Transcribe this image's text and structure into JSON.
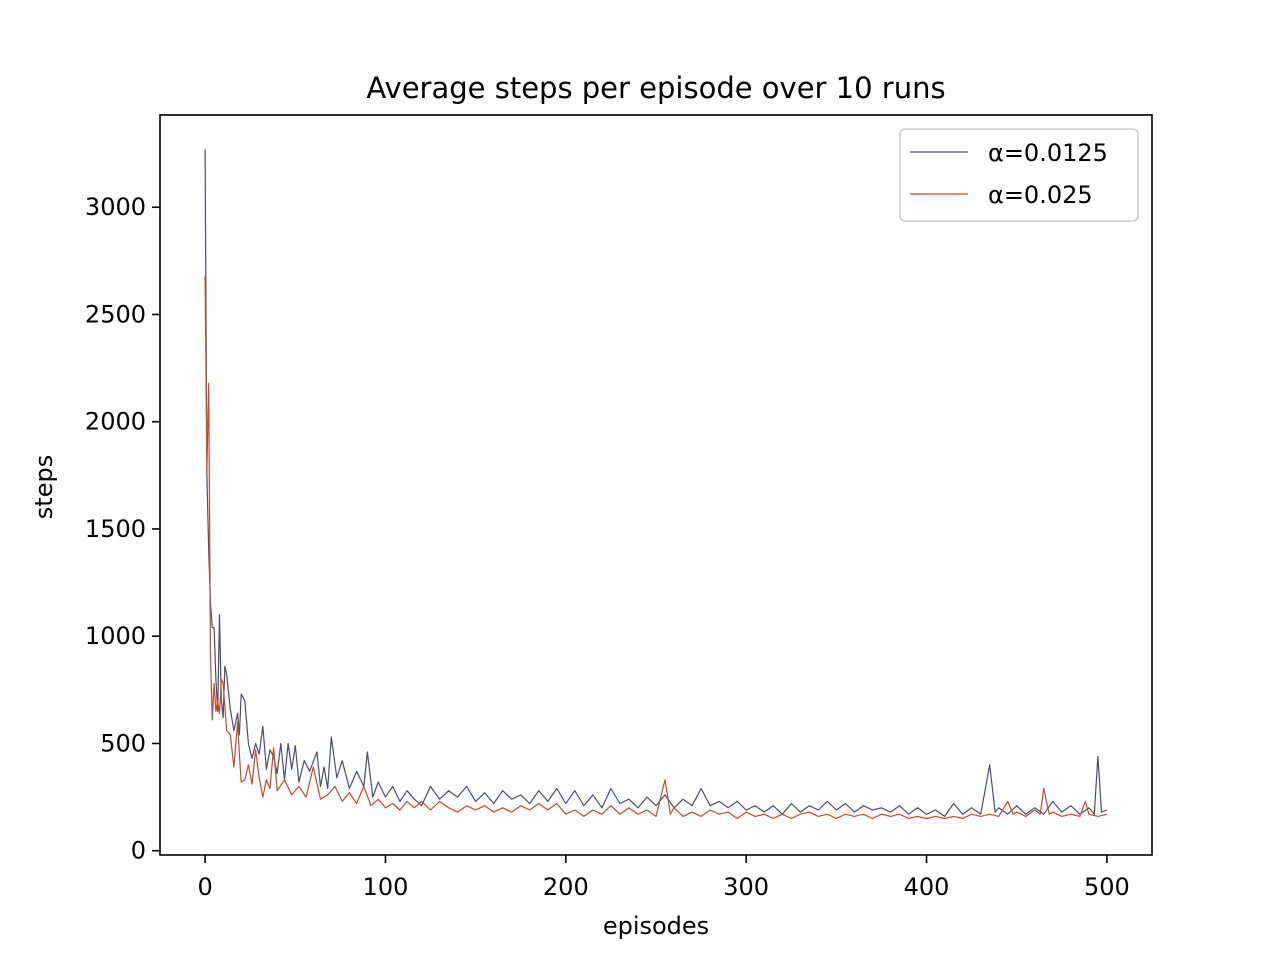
{
  "chart_data": {
    "type": "line",
    "title": "Average steps per episode over 10 runs",
    "xlabel": "episodes",
    "ylabel": "steps",
    "xlim": [
      -25,
      525
    ],
    "ylim": [
      -20,
      3430
    ],
    "xticks": [
      0,
      100,
      200,
      300,
      400,
      500
    ],
    "yticks": [
      0,
      500,
      1000,
      1500,
      2000,
      2500,
      3000
    ],
    "legend_position": "top-right",
    "grid": false,
    "series": [
      {
        "name": "α=0.0125",
        "color": "#4a4e69",
        "points": [
          [
            0,
            3270
          ],
          [
            1,
            1750
          ],
          [
            2,
            1400
          ],
          [
            3,
            1150
          ],
          [
            4,
            1040
          ],
          [
            5,
            1040
          ],
          [
            6,
            800
          ],
          [
            7,
            650
          ],
          [
            8,
            1100
          ],
          [
            9,
            700
          ],
          [
            10,
            620
          ],
          [
            11,
            860
          ],
          [
            12,
            820
          ],
          [
            14,
            660
          ],
          [
            16,
            560
          ],
          [
            18,
            640
          ],
          [
            19,
            540
          ],
          [
            20,
            730
          ],
          [
            22,
            700
          ],
          [
            24,
            500
          ],
          [
            26,
            430
          ],
          [
            28,
            500
          ],
          [
            30,
            450
          ],
          [
            32,
            580
          ],
          [
            34,
            380
          ],
          [
            36,
            470
          ],
          [
            38,
            440
          ],
          [
            40,
            360
          ],
          [
            42,
            500
          ],
          [
            44,
            330
          ],
          [
            46,
            500
          ],
          [
            48,
            380
          ],
          [
            50,
            490
          ],
          [
            52,
            320
          ],
          [
            55,
            420
          ],
          [
            58,
            370
          ],
          [
            62,
            460
          ],
          [
            64,
            300
          ],
          [
            66,
            390
          ],
          [
            68,
            290
          ],
          [
            70,
            530
          ],
          [
            73,
            340
          ],
          [
            76,
            420
          ],
          [
            80,
            290
          ],
          [
            84,
            370
          ],
          [
            88,
            300
          ],
          [
            90,
            460
          ],
          [
            93,
            250
          ],
          [
            96,
            320
          ],
          [
            100,
            250
          ],
          [
            104,
            300
          ],
          [
            108,
            230
          ],
          [
            112,
            280
          ],
          [
            116,
            240
          ],
          [
            120,
            210
          ],
          [
            125,
            300
          ],
          [
            130,
            240
          ],
          [
            135,
            280
          ],
          [
            140,
            250
          ],
          [
            145,
            300
          ],
          [
            150,
            230
          ],
          [
            155,
            270
          ],
          [
            160,
            220
          ],
          [
            165,
            280
          ],
          [
            170,
            240
          ],
          [
            175,
            260
          ],
          [
            180,
            220
          ],
          [
            185,
            280
          ],
          [
            190,
            230
          ],
          [
            195,
            290
          ],
          [
            200,
            220
          ],
          [
            205,
            280
          ],
          [
            210,
            210
          ],
          [
            215,
            260
          ],
          [
            220,
            200
          ],
          [
            225,
            290
          ],
          [
            230,
            220
          ],
          [
            235,
            240
          ],
          [
            240,
            200
          ],
          [
            245,
            250
          ],
          [
            250,
            210
          ],
          [
            255,
            260
          ],
          [
            260,
            200
          ],
          [
            265,
            240
          ],
          [
            270,
            210
          ],
          [
            275,
            290
          ],
          [
            280,
            210
          ],
          [
            285,
            230
          ],
          [
            290,
            200
          ],
          [
            295,
            230
          ],
          [
            300,
            190
          ],
          [
            305,
            210
          ],
          [
            310,
            180
          ],
          [
            315,
            210
          ],
          [
            320,
            170
          ],
          [
            325,
            220
          ],
          [
            330,
            180
          ],
          [
            335,
            210
          ],
          [
            340,
            190
          ],
          [
            345,
            230
          ],
          [
            350,
            190
          ],
          [
            355,
            220
          ],
          [
            360,
            180
          ],
          [
            365,
            210
          ],
          [
            370,
            190
          ],
          [
            375,
            200
          ],
          [
            380,
            180
          ],
          [
            385,
            210
          ],
          [
            390,
            170
          ],
          [
            395,
            200
          ],
          [
            400,
            170
          ],
          [
            405,
            190
          ],
          [
            410,
            160
          ],
          [
            415,
            220
          ],
          [
            420,
            170
          ],
          [
            425,
            200
          ],
          [
            430,
            170
          ],
          [
            435,
            400
          ],
          [
            438,
            180
          ],
          [
            440,
            200
          ],
          [
            445,
            170
          ],
          [
            450,
            210
          ],
          [
            455,
            170
          ],
          [
            460,
            200
          ],
          [
            465,
            170
          ],
          [
            470,
            230
          ],
          [
            475,
            180
          ],
          [
            480,
            210
          ],
          [
            485,
            170
          ],
          [
            490,
            200
          ],
          [
            493,
            170
          ],
          [
            495,
            440
          ],
          [
            497,
            180
          ],
          [
            500,
            190
          ]
        ]
      },
      {
        "name": "α=0.025",
        "color": "#c44a32",
        "points": [
          [
            0,
            2680
          ],
          [
            1,
            1780
          ],
          [
            2,
            2180
          ],
          [
            3,
            900
          ],
          [
            4,
            610
          ],
          [
            5,
            780
          ],
          [
            6,
            650
          ],
          [
            7,
            700
          ],
          [
            8,
            640
          ],
          [
            9,
            800
          ],
          [
            10,
            780
          ],
          [
            12,
            560
          ],
          [
            14,
            540
          ],
          [
            16,
            390
          ],
          [
            18,
            600
          ],
          [
            19,
            450
          ],
          [
            20,
            320
          ],
          [
            22,
            330
          ],
          [
            24,
            400
          ],
          [
            26,
            310
          ],
          [
            28,
            470
          ],
          [
            30,
            340
          ],
          [
            32,
            250
          ],
          [
            34,
            330
          ],
          [
            36,
            290
          ],
          [
            38,
            480
          ],
          [
            40,
            280
          ],
          [
            44,
            330
          ],
          [
            48,
            260
          ],
          [
            52,
            300
          ],
          [
            56,
            250
          ],
          [
            60,
            390
          ],
          [
            64,
            240
          ],
          [
            68,
            260
          ],
          [
            72,
            300
          ],
          [
            76,
            230
          ],
          [
            80,
            270
          ],
          [
            84,
            220
          ],
          [
            88,
            300
          ],
          [
            92,
            210
          ],
          [
            96,
            240
          ],
          [
            100,
            200
          ],
          [
            104,
            220
          ],
          [
            108,
            190
          ],
          [
            112,
            230
          ],
          [
            116,
            200
          ],
          [
            120,
            230
          ],
          [
            125,
            190
          ],
          [
            130,
            230
          ],
          [
            135,
            200
          ],
          [
            140,
            180
          ],
          [
            145,
            210
          ],
          [
            150,
            190
          ],
          [
            155,
            210
          ],
          [
            160,
            180
          ],
          [
            165,
            200
          ],
          [
            170,
            180
          ],
          [
            175,
            210
          ],
          [
            180,
            190
          ],
          [
            185,
            220
          ],
          [
            190,
            190
          ],
          [
            195,
            220
          ],
          [
            200,
            170
          ],
          [
            205,
            190
          ],
          [
            210,
            160
          ],
          [
            215,
            190
          ],
          [
            220,
            170
          ],
          [
            225,
            210
          ],
          [
            230,
            170
          ],
          [
            235,
            200
          ],
          [
            240,
            170
          ],
          [
            245,
            190
          ],
          [
            250,
            160
          ],
          [
            255,
            330
          ],
          [
            258,
            170
          ],
          [
            260,
            200
          ],
          [
            265,
            160
          ],
          [
            270,
            180
          ],
          [
            275,
            160
          ],
          [
            280,
            190
          ],
          [
            285,
            170
          ],
          [
            290,
            180
          ],
          [
            295,
            150
          ],
          [
            300,
            180
          ],
          [
            305,
            160
          ],
          [
            310,
            170
          ],
          [
            315,
            150
          ],
          [
            320,
            170
          ],
          [
            325,
            150
          ],
          [
            330,
            170
          ],
          [
            335,
            180
          ],
          [
            340,
            160
          ],
          [
            345,
            170
          ],
          [
            350,
            150
          ],
          [
            355,
            170
          ],
          [
            360,
            160
          ],
          [
            365,
            170
          ],
          [
            370,
            150
          ],
          [
            375,
            170
          ],
          [
            380,
            160
          ],
          [
            385,
            170
          ],
          [
            390,
            150
          ],
          [
            395,
            160
          ],
          [
            400,
            150
          ],
          [
            405,
            160
          ],
          [
            410,
            150
          ],
          [
            415,
            160
          ],
          [
            420,
            150
          ],
          [
            425,
            170
          ],
          [
            430,
            160
          ],
          [
            435,
            170
          ],
          [
            440,
            160
          ],
          [
            445,
            230
          ],
          [
            448,
            170
          ],
          [
            450,
            180
          ],
          [
            455,
            160
          ],
          [
            460,
            190
          ],
          [
            463,
            170
          ],
          [
            465,
            290
          ],
          [
            468,
            170
          ],
          [
            470,
            180
          ],
          [
            475,
            160
          ],
          [
            480,
            170
          ],
          [
            485,
            160
          ],
          [
            488,
            230
          ],
          [
            490,
            170
          ],
          [
            495,
            160
          ],
          [
            500,
            170
          ]
        ]
      }
    ]
  }
}
